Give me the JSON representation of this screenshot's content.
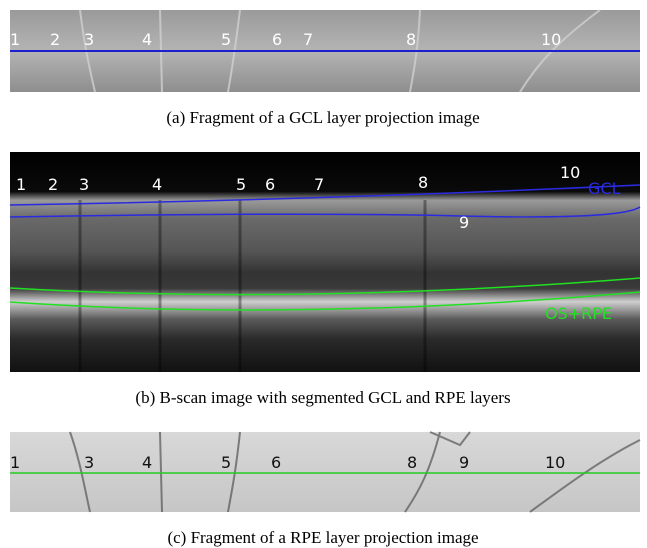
{
  "panels": [
    {
      "labels": [
        "1",
        "2",
        "3",
        "4",
        "5",
        "6",
        "7",
        "8",
        "10"
      ],
      "caption": "(a) Fragment of a GCL layer projection image"
    },
    {
      "labels": [
        "1",
        "2",
        "3",
        "4",
        "5",
        "6",
        "7",
        "8",
        "10",
        "GCL",
        "9",
        "OS+RPE"
      ],
      "caption": "(b) B-scan image with segmented GCL and RPE layers"
    },
    {
      "labels": [
        "1",
        "3",
        "4",
        "5",
        "6",
        "8",
        "9",
        "10"
      ],
      "caption": "(c) Fragment of a RPE layer projection image"
    }
  ]
}
